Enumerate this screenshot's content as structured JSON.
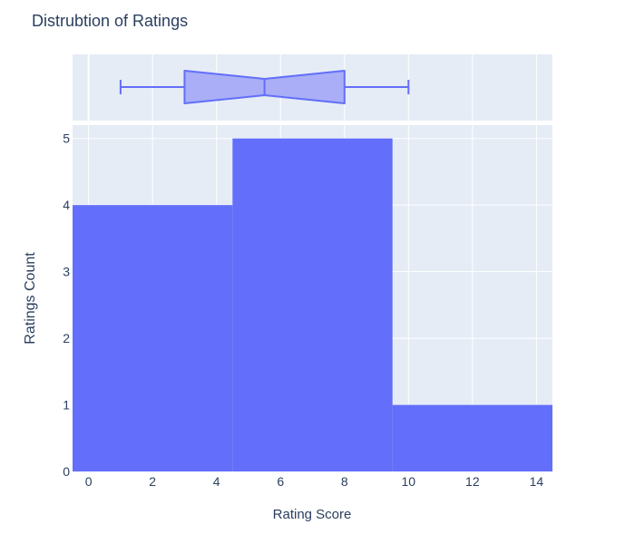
{
  "chart_data": {
    "type": "histogram",
    "title": "Distrubtion of Ratings",
    "xlabel": "Rating Score",
    "ylabel": "Ratings Count",
    "xlim": [
      -0.5,
      14.5
    ],
    "ylim": [
      0,
      5.2
    ],
    "x_ticks": [
      0,
      2,
      4,
      6,
      8,
      10,
      12,
      14
    ],
    "y_ticks": [
      0,
      1,
      2,
      3,
      4,
      5
    ],
    "grid": true,
    "bins": [
      {
        "start": -0.5,
        "end": 4.5,
        "count": 4
      },
      {
        "start": 4.5,
        "end": 9.5,
        "count": 5
      },
      {
        "start": 9.5,
        "end": 14.5,
        "count": 1
      }
    ],
    "marginal_box": {
      "type": "box",
      "notched": true,
      "min": 1,
      "q1": 3,
      "median": 5.5,
      "q3": 8,
      "max": 10
    },
    "colors": {
      "bar": "#636efa",
      "box_fill": "#a9aef7",
      "box_line": "#636efa",
      "plot_bg": "#e5ecf6",
      "grid": "#ffffff",
      "text": "#2a3f5f"
    }
  }
}
